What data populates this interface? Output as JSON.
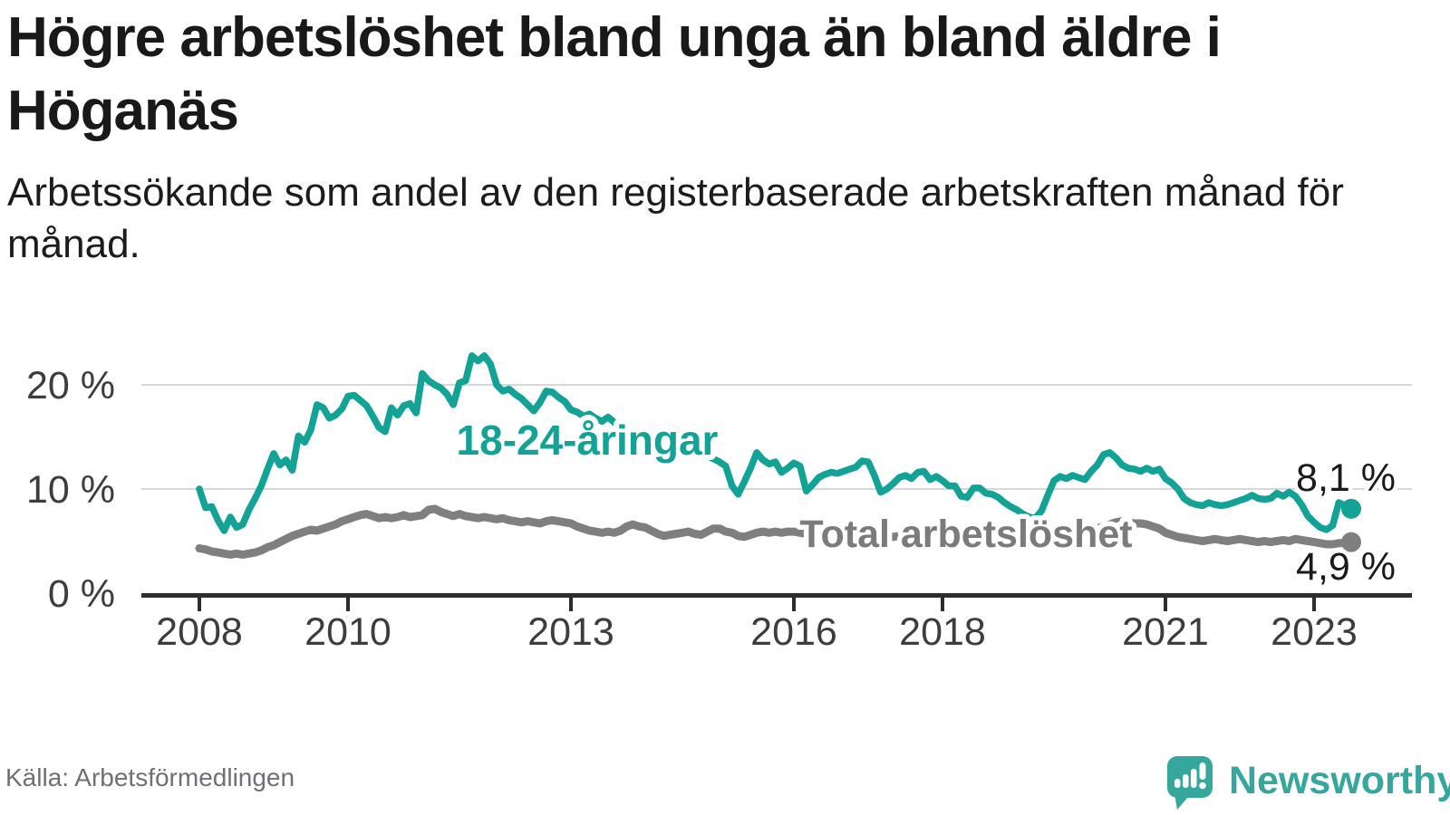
{
  "header": {
    "title": "Högre arbetslöshet bland unga än bland äldre i Höganäs",
    "subtitle": "Arbetssökande som andel av den registerbaserade arbetskraften månad för månad."
  },
  "footer": {
    "source": "Källa: Arbetsförmedlingen",
    "brand": "Newsworthy"
  },
  "colors": {
    "young_line": "#12a296",
    "total_line": "#7f7f7f",
    "total_label": "#7b7b7b",
    "axis": "#2d2d2d",
    "grid": "#d8d8d8",
    "tick_label": "#3d3d3d",
    "value_label": "#1a1a1a",
    "brand": "#35a79c"
  },
  "chart_data": {
    "type": "line",
    "title": "Högre arbetslöshet bland unga än bland äldre i Höganäs",
    "xlabel": "",
    "ylabel": "",
    "grid": "horizontal",
    "legend_position": "inline",
    "x_start_year": 2008,
    "x_start_month": 1,
    "points_per_year": 12,
    "ylim": [
      0,
      24.5
    ],
    "y_ticks": [
      {
        "value": 0,
        "label": "0 %"
      },
      {
        "value": 10,
        "label": "10 %"
      },
      {
        "value": 20,
        "label": "20 %"
      }
    ],
    "x_ticks": [
      {
        "value": 2008,
        "label": "2008"
      },
      {
        "value": 2010,
        "label": "2010"
      },
      {
        "value": 2013,
        "label": "2013"
      },
      {
        "value": 2016,
        "label": "2016"
      },
      {
        "value": 2018,
        "label": "2018"
      },
      {
        "value": 2021,
        "label": "2021"
      },
      {
        "value": 2023,
        "label": "2023"
      }
    ],
    "series": [
      {
        "name": "Total arbetslöshet",
        "color": "#7f7f7f",
        "end_value": 4.9,
        "end_label": "4,9 %",
        "line_width": 9,
        "values": [
          4.3,
          4.2,
          4.0,
          3.9,
          3.8,
          3.7,
          3.8,
          3.7,
          3.8,
          3.9,
          4.1,
          4.4,
          4.6,
          4.9,
          5.2,
          5.5,
          5.7,
          5.9,
          6.1,
          6.0,
          6.2,
          6.4,
          6.6,
          6.9,
          7.1,
          7.3,
          7.5,
          7.6,
          7.4,
          7.2,
          7.3,
          7.2,
          7.3,
          7.5,
          7.3,
          7.4,
          7.5,
          8.0,
          8.1,
          7.8,
          7.6,
          7.4,
          7.6,
          7.4,
          7.3,
          7.2,
          7.3,
          7.2,
          7.1,
          7.2,
          7.0,
          6.9,
          6.8,
          6.9,
          6.8,
          6.7,
          6.9,
          7.0,
          6.9,
          6.8,
          6.7,
          6.4,
          6.2,
          6.0,
          5.9,
          5.8,
          5.9,
          5.8,
          6.0,
          6.4,
          6.6,
          6.4,
          6.3,
          6.0,
          5.7,
          5.5,
          5.6,
          5.7,
          5.8,
          5.9,
          5.7,
          5.6,
          5.9,
          6.2,
          6.2,
          5.9,
          5.8,
          5.5,
          5.4,
          5.6,
          5.8,
          5.9,
          5.8,
          5.9,
          5.8,
          5.9,
          5.9,
          5.8,
          5.7,
          5.6,
          5.5,
          5.6,
          5.7,
          5.6,
          5.5,
          5.6,
          5.5,
          5.6,
          5.6,
          5.5,
          5.4,
          5.5,
          5.4,
          5.5,
          5.6,
          5.5,
          5.4,
          5.5,
          5.4,
          5.5,
          5.5,
          5.4,
          5.3,
          5.4,
          5.3,
          5.2,
          5.3,
          5.2,
          5.3,
          5.4,
          5.3,
          5.4,
          5.4,
          5.3,
          5.4,
          5.5,
          5.6,
          5.7,
          5.8,
          5.7,
          5.8,
          5.9,
          5.8,
          5.9,
          6.0,
          6.2,
          6.4,
          6.6,
          6.8,
          6.9,
          6.8,
          6.7,
          6.7,
          6.6,
          6.4,
          6.2,
          5.8,
          5.6,
          5.4,
          5.3,
          5.2,
          5.1,
          5.0,
          5.1,
          5.2,
          5.1,
          5.0,
          5.1,
          5.2,
          5.1,
          5.0,
          4.9,
          5.0,
          4.9,
          5.0,
          5.1,
          5.0,
          5.2,
          5.1,
          5.0,
          4.9,
          4.8,
          4.7,
          4.7,
          4.8,
          4.8,
          4.9
        ]
      },
      {
        "name": "18-24-åringar",
        "color": "#12a296",
        "end_value": 8.1,
        "end_label": "8,1 %",
        "line_width": 7.5,
        "values": [
          10.0,
          8.2,
          8.3,
          7.0,
          6.0,
          7.3,
          6.3,
          6.6,
          8.0,
          9.1,
          10.3,
          11.9,
          13.4,
          12.3,
          12.8,
          11.8,
          15.1,
          14.5,
          15.7,
          18.1,
          17.8,
          16.8,
          17.1,
          17.7,
          18.9,
          19.0,
          18.5,
          18.0,
          17.0,
          15.9,
          15.5,
          17.8,
          17.1,
          18.0,
          18.2,
          17.3,
          21.1,
          20.4,
          20.0,
          19.7,
          19.1,
          18.1,
          20.2,
          20.4,
          22.8,
          22.3,
          22.8,
          22.0,
          20.0,
          19.4,
          19.6,
          19.1,
          18.7,
          18.1,
          17.5,
          18.3,
          19.4,
          19.3,
          18.8,
          18.4,
          17.6,
          17.4,
          17.0,
          17.2,
          16.8,
          16.5,
          16.9,
          16.4,
          16.0,
          15.6,
          15.3,
          15.0,
          14.7,
          14.4,
          14.2,
          14.0,
          13.8,
          13.6,
          13.8,
          13.5,
          13.3,
          13.4,
          13.2,
          12.9,
          12.6,
          12.2,
          10.3,
          9.5,
          10.7,
          12.0,
          13.5,
          12.8,
          12.4,
          12.6,
          11.6,
          12.0,
          12.5,
          12.2,
          9.8,
          10.4,
          11.1,
          11.4,
          11.6,
          11.5,
          11.7,
          11.9,
          12.1,
          12.7,
          12.6,
          11.3,
          9.7,
          10.0,
          10.5,
          11.1,
          11.3,
          11.0,
          11.6,
          11.7,
          10.9,
          11.2,
          10.8,
          10.3,
          10.3,
          9.3,
          9.2,
          10.1,
          10.1,
          9.6,
          9.5,
          9.2,
          8.7,
          8.3,
          8.0,
          7.6,
          7.3,
          7.2,
          7.9,
          9.4,
          10.8,
          11.2,
          11.0,
          11.3,
          11.1,
          10.9,
          11.7,
          12.3,
          13.3,
          13.5,
          13.0,
          12.3,
          12.0,
          11.9,
          11.7,
          12.0,
          11.7,
          11.9,
          11.0,
          10.6,
          10.0,
          9.1,
          8.7,
          8.5,
          8.4,
          8.7,
          8.5,
          8.4,
          8.5,
          8.7,
          8.9,
          9.1,
          9.4,
          9.1,
          9.0,
          9.1,
          9.6,
          9.3,
          9.7,
          9.3,
          8.5,
          7.4,
          6.8,
          6.3,
          6.1,
          6.5,
          8.7,
          8.4,
          8.1
        ]
      }
    ]
  }
}
